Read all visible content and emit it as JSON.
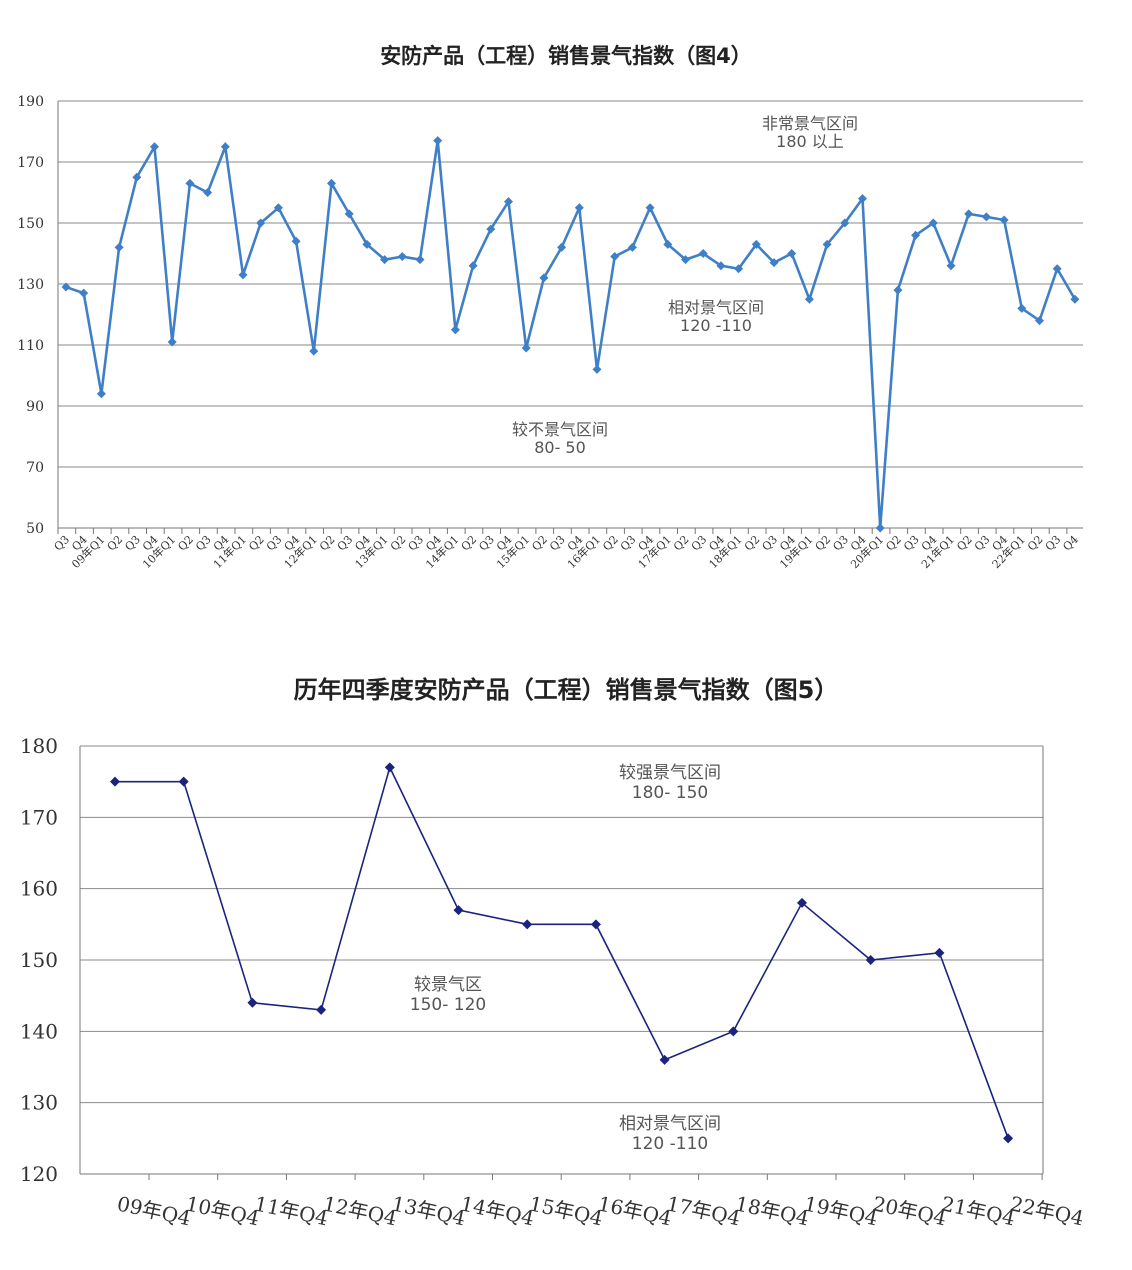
{
  "chart_data": [
    {
      "type": "line",
      "title": "安防产品（工程）销售景气指数（图4）",
      "ylim": [
        50,
        190
      ],
      "yticks": [
        50,
        70,
        90,
        110,
        130,
        150,
        170,
        190
      ],
      "grid": true,
      "series_color": "#3f7fc7",
      "categories": [
        "Q3",
        "Q4",
        "09年Q1",
        "Q2",
        "Q3",
        "Q4",
        "10年Q1",
        "Q2",
        "Q3",
        "Q4",
        "11年Q1",
        "Q2",
        "Q3",
        "Q4",
        "12年Q1",
        "Q2",
        "Q3",
        "Q4",
        "13年Q1",
        "Q2",
        "Q3",
        "Q4",
        "14年Q1",
        "Q2",
        "Q3",
        "Q4",
        "15年Q1",
        "Q2",
        "Q3",
        "Q4",
        "16年Q1",
        "Q2",
        "Q3",
        "Q4",
        "17年Q1",
        "Q2",
        "Q3",
        "Q4",
        "18年Q1",
        "Q2",
        "Q3",
        "Q4",
        "19年Q1",
        "Q2",
        "Q3",
        "Q4",
        "20年Q1",
        "Q2",
        "Q3",
        "Q4",
        "21年Q1",
        "Q2",
        "Q3",
        "Q4",
        "22年Q1",
        "Q2",
        "Q3",
        "Q4"
      ],
      "values": [
        129,
        127,
        94,
        142,
        165,
        175,
        111,
        163,
        160,
        175,
        133,
        150,
        155,
        144,
        108,
        163,
        153,
        143,
        138,
        139,
        138,
        177,
        115,
        136,
        148,
        157,
        109,
        132,
        142,
        155,
        102,
        139,
        142,
        155,
        143,
        138,
        140,
        136,
        135,
        143,
        137,
        140,
        125,
        143,
        150,
        158,
        50,
        128,
        146,
        150,
        136,
        153,
        152,
        151,
        122,
        118,
        135,
        125
      ],
      "annotations": [
        {
          "lines": [
            "非常景气区间",
            "180 以上"
          ]
        },
        {
          "lines": [
            "相对景气区间",
            "120 -110"
          ]
        },
        {
          "lines": [
            "较不景气区间",
            "80- 50"
          ]
        }
      ]
    },
    {
      "type": "line",
      "title": "历年四季度安防产品（工程）销售景气指数（图5）",
      "ylim": [
        120,
        180
      ],
      "yticks": [
        120,
        130,
        140,
        150,
        160,
        170,
        180
      ],
      "grid": true,
      "series_color": "#1a237e",
      "categories": [
        "09年Q4",
        "10年Q4",
        "11年Q4",
        "12年Q4",
        "13年Q4",
        "14年Q4",
        "15年Q4",
        "16年Q4",
        "17年Q4",
        "18年Q4",
        "19年Q4",
        "20年Q4",
        "21年Q4",
        "22年Q4"
      ],
      "values": [
        175,
        175,
        144,
        143,
        177,
        157,
        155,
        155,
        136,
        140,
        158,
        150,
        151,
        125
      ],
      "annotations": [
        {
          "lines": [
            "较强景气区间",
            "180- 150"
          ]
        },
        {
          "lines": [
            "较景气区",
            "150- 120"
          ]
        },
        {
          "lines": [
            "相对景气区间",
            "120 -110"
          ]
        }
      ]
    }
  ]
}
